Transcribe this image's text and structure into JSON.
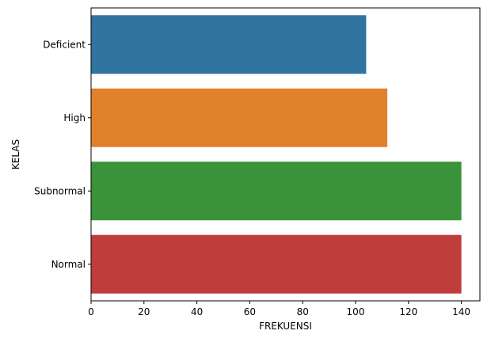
{
  "chart_data": {
    "type": "bar",
    "orientation": "horizontal",
    "categories": [
      "Deficient",
      "High",
      "Subnormal",
      "Normal"
    ],
    "values": [
      104,
      112,
      140,
      140
    ],
    "colors": [
      "#3274a1",
      "#e1812c",
      "#3a923a",
      "#c03d3e"
    ],
    "title": "",
    "xlabel": "FREKUENSI",
    "ylabel": "KELAS",
    "xlim": [
      0,
      147
    ],
    "xticks": [
      0,
      20,
      40,
      60,
      80,
      100,
      120,
      140
    ],
    "grid": false,
    "legend": "none"
  }
}
